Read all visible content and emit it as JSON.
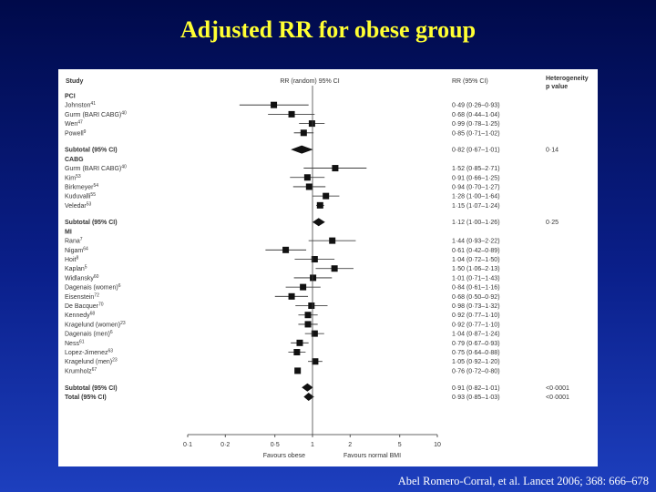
{
  "slide": {
    "title": "Adjusted RR for obese group",
    "citation": "Abel Romero-Corral, et al. Lancet 2006; 368: 666–678",
    "background_colors": [
      "#000a4a",
      "#1d3fbe"
    ],
    "title_color": "#ffff33"
  },
  "chart_data": {
    "type": "forest",
    "scale": "log",
    "xlim": [
      0.1,
      10
    ],
    "columns": {
      "study": "Study",
      "plot": "RR (random) 95% CI",
      "rr": "RR (95% CI)",
      "het": "Heterogeneity p value"
    },
    "x_ticks": [
      "0·1",
      "0·2",
      "0·5",
      "1",
      "2",
      "5",
      "10"
    ],
    "x_tick_values": [
      0.1,
      0.2,
      0.5,
      1,
      2,
      5,
      10
    ],
    "xlabel_left": "Favours obese",
    "xlabel_right": "Favours normal BMI",
    "rows": [
      {
        "kind": "header",
        "label": "PCI"
      },
      {
        "kind": "study",
        "label": "Johnston",
        "ref": "41",
        "rr": 0.49,
        "lo": 0.26,
        "hi": 0.93,
        "text": "0·49 (0·26–0·93)"
      },
      {
        "kind": "study",
        "label": "Gurm (BARI CABG)",
        "ref": "40",
        "rr": 0.68,
        "lo": 0.44,
        "hi": 1.04,
        "text": "0·68 (0·44–1·04)"
      },
      {
        "kind": "study",
        "label": "Wen",
        "ref": "47",
        "rr": 0.99,
        "lo": 0.78,
        "hi": 1.25,
        "text": "0·99 (0·78–1·25)"
      },
      {
        "kind": "study",
        "label": "Powell",
        "ref": "9",
        "rr": 0.85,
        "lo": 0.71,
        "hi": 1.02,
        "text": "0·85 (0·71–1·02)"
      },
      {
        "kind": "gap"
      },
      {
        "kind": "subtotal",
        "label": "Subtotal (95% CI)",
        "rr": 0.82,
        "lo": 0.67,
        "hi": 1.01,
        "text": "0·82 (0·67–1·01)",
        "het": "0·14"
      },
      {
        "kind": "header",
        "label": "CABG"
      },
      {
        "kind": "study",
        "label": "Gurm (BARI CABG)",
        "ref": "40",
        "rr": 1.52,
        "lo": 0.85,
        "hi": 2.71,
        "text": "1·52 (0·85–2·71)"
      },
      {
        "kind": "study",
        "label": "Kim",
        "ref": "53",
        "rr": 0.91,
        "lo": 0.66,
        "hi": 1.25,
        "text": "0·91 (0·66–1·25)"
      },
      {
        "kind": "study",
        "label": "Birkmeyer",
        "ref": "54",
        "rr": 0.94,
        "lo": 0.7,
        "hi": 1.27,
        "text": "0·94 (0·70–1·27)"
      },
      {
        "kind": "study",
        "label": "Kuduvalli",
        "ref": "55",
        "rr": 1.28,
        "lo": 1.0,
        "hi": 1.64,
        "text": "1·28 (1·00–1·64)"
      },
      {
        "kind": "study",
        "label": "Veledar",
        "ref": "53",
        "rr": 1.15,
        "lo": 1.07,
        "hi": 1.24,
        "text": "1·15 (1·07–1·24)"
      },
      {
        "kind": "gap"
      },
      {
        "kind": "subtotal",
        "label": "Subtotal (95% CI)",
        "rr": 1.12,
        "lo": 1.0,
        "hi": 1.26,
        "text": "1·12 (1·00–1·26)",
        "het": "0·25"
      },
      {
        "kind": "header",
        "label": "MI"
      },
      {
        "kind": "study",
        "label": "Rana",
        "ref": "7",
        "rr": 1.44,
        "lo": 0.93,
        "hi": 2.22,
        "text": "1·44 (0·93–2·22)"
      },
      {
        "kind": "study",
        "label": "Nigam",
        "ref": "64",
        "rr": 0.61,
        "lo": 0.42,
        "hi": 0.89,
        "text": "0·61 (0·42–0·89)"
      },
      {
        "kind": "study",
        "label": "Hoit",
        "ref": "8",
        "rr": 1.04,
        "lo": 0.72,
        "hi": 1.5,
        "text": "1·04 (0·72–1·50)"
      },
      {
        "kind": "study",
        "label": "Kaplan",
        "ref": "5",
        "rr": 1.5,
        "lo": 1.06,
        "hi": 2.13,
        "text": "1·50 (1·06–2·13)"
      },
      {
        "kind": "study",
        "label": "Widlansky",
        "ref": "60",
        "rr": 1.01,
        "lo": 0.71,
        "hi": 1.43,
        "text": "1·01 (0·71–1·43)"
      },
      {
        "kind": "study",
        "label": "Dagenais (women)",
        "ref": "6",
        "rr": 0.84,
        "lo": 0.61,
        "hi": 1.16,
        "text": "0·84 (0·61–1·16)"
      },
      {
        "kind": "study",
        "label": "Eisenstein",
        "ref": "72",
        "rr": 0.68,
        "lo": 0.5,
        "hi": 0.92,
        "text": "0·68 (0·50–0·92)"
      },
      {
        "kind": "study",
        "label": "De Bacquer",
        "ref": "70",
        "rr": 0.98,
        "lo": 0.73,
        "hi": 1.32,
        "text": "0·98 (0·73–1·32)"
      },
      {
        "kind": "study",
        "label": "Kennedy",
        "ref": "68",
        "rr": 0.92,
        "lo": 0.77,
        "hi": 1.1,
        "text": "0·92 (0·77–1·10)"
      },
      {
        "kind": "study",
        "label": "Kragelund (women)",
        "ref": "23",
        "rr": 0.92,
        "lo": 0.77,
        "hi": 1.1,
        "text": "0·92 (0·77–1·10)"
      },
      {
        "kind": "study",
        "label": "Dagenais (men)",
        "ref": "6",
        "rr": 1.04,
        "lo": 0.87,
        "hi": 1.24,
        "text": "1·04 (0·87–1·24)"
      },
      {
        "kind": "study",
        "label": "Ness",
        "ref": "61",
        "rr": 0.79,
        "lo": 0.67,
        "hi": 0.93,
        "text": "0·79 (0·67–0·93)"
      },
      {
        "kind": "study",
        "label": "Lopez-Jimenez",
        "ref": "63",
        "rr": 0.75,
        "lo": 0.64,
        "hi": 0.88,
        "text": "0·75 (0·64–0·88)"
      },
      {
        "kind": "study",
        "label": "Kragelund (men)",
        "ref": "23",
        "rr": 1.05,
        "lo": 0.92,
        "hi": 1.2,
        "text": "1·05 (0·92–1·20)"
      },
      {
        "kind": "study",
        "label": "Krumholz",
        "ref": "67",
        "rr": 0.76,
        "lo": 0.72,
        "hi": 0.8,
        "text": "0·76 (0·72–0·80)"
      },
      {
        "kind": "gap"
      },
      {
        "kind": "subtotal",
        "label": "Subtotal (95% CI)",
        "rr": 0.91,
        "lo": 0.82,
        "hi": 1.01,
        "text": "0·91 (0·82–1·01)",
        "het": "<0·0001"
      },
      {
        "kind": "subtotal",
        "label": "Total (95% CI)",
        "rr": 0.93,
        "lo": 0.85,
        "hi": 1.03,
        "text": "0·93 (0·85–1·03)",
        "het": "<0·0001"
      }
    ]
  }
}
